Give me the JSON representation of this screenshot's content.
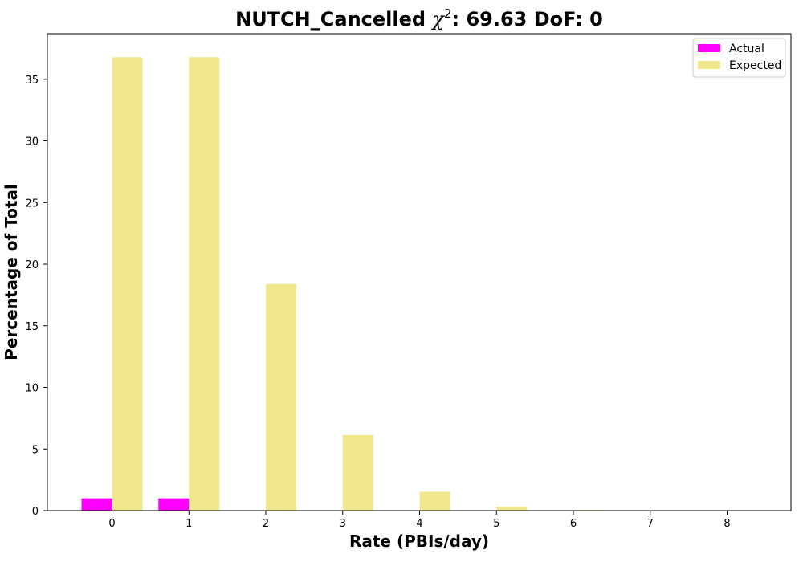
{
  "chart_data": {
    "type": "bar",
    "title": {
      "main": "NUTCH_Cancelled ",
      "chi": "χ",
      "sup": "2",
      "rest": ": 69.63 DoF: 0"
    },
    "xlabel": "Rate (PBIs/day)",
    "ylabel": "Percentage of Total",
    "categories": [
      "0",
      "1",
      "2",
      "3",
      "4",
      "5",
      "6",
      "7",
      "8"
    ],
    "ylim": [
      0,
      38.7
    ],
    "yticks": [
      0,
      5,
      10,
      15,
      20,
      25,
      30,
      35
    ],
    "grid": false,
    "legend_position": "top-right",
    "series": [
      {
        "name": "Actual",
        "color": "#ff00ff",
        "values": [
          1.0,
          1.0,
          0,
          0,
          0,
          0,
          0,
          0,
          0
        ]
      },
      {
        "name": "Expected",
        "color": "#f0e68c",
        "values": [
          36.79,
          36.79,
          18.39,
          6.13,
          1.53,
          0.31,
          0.05,
          0.007,
          0.001
        ]
      }
    ]
  }
}
